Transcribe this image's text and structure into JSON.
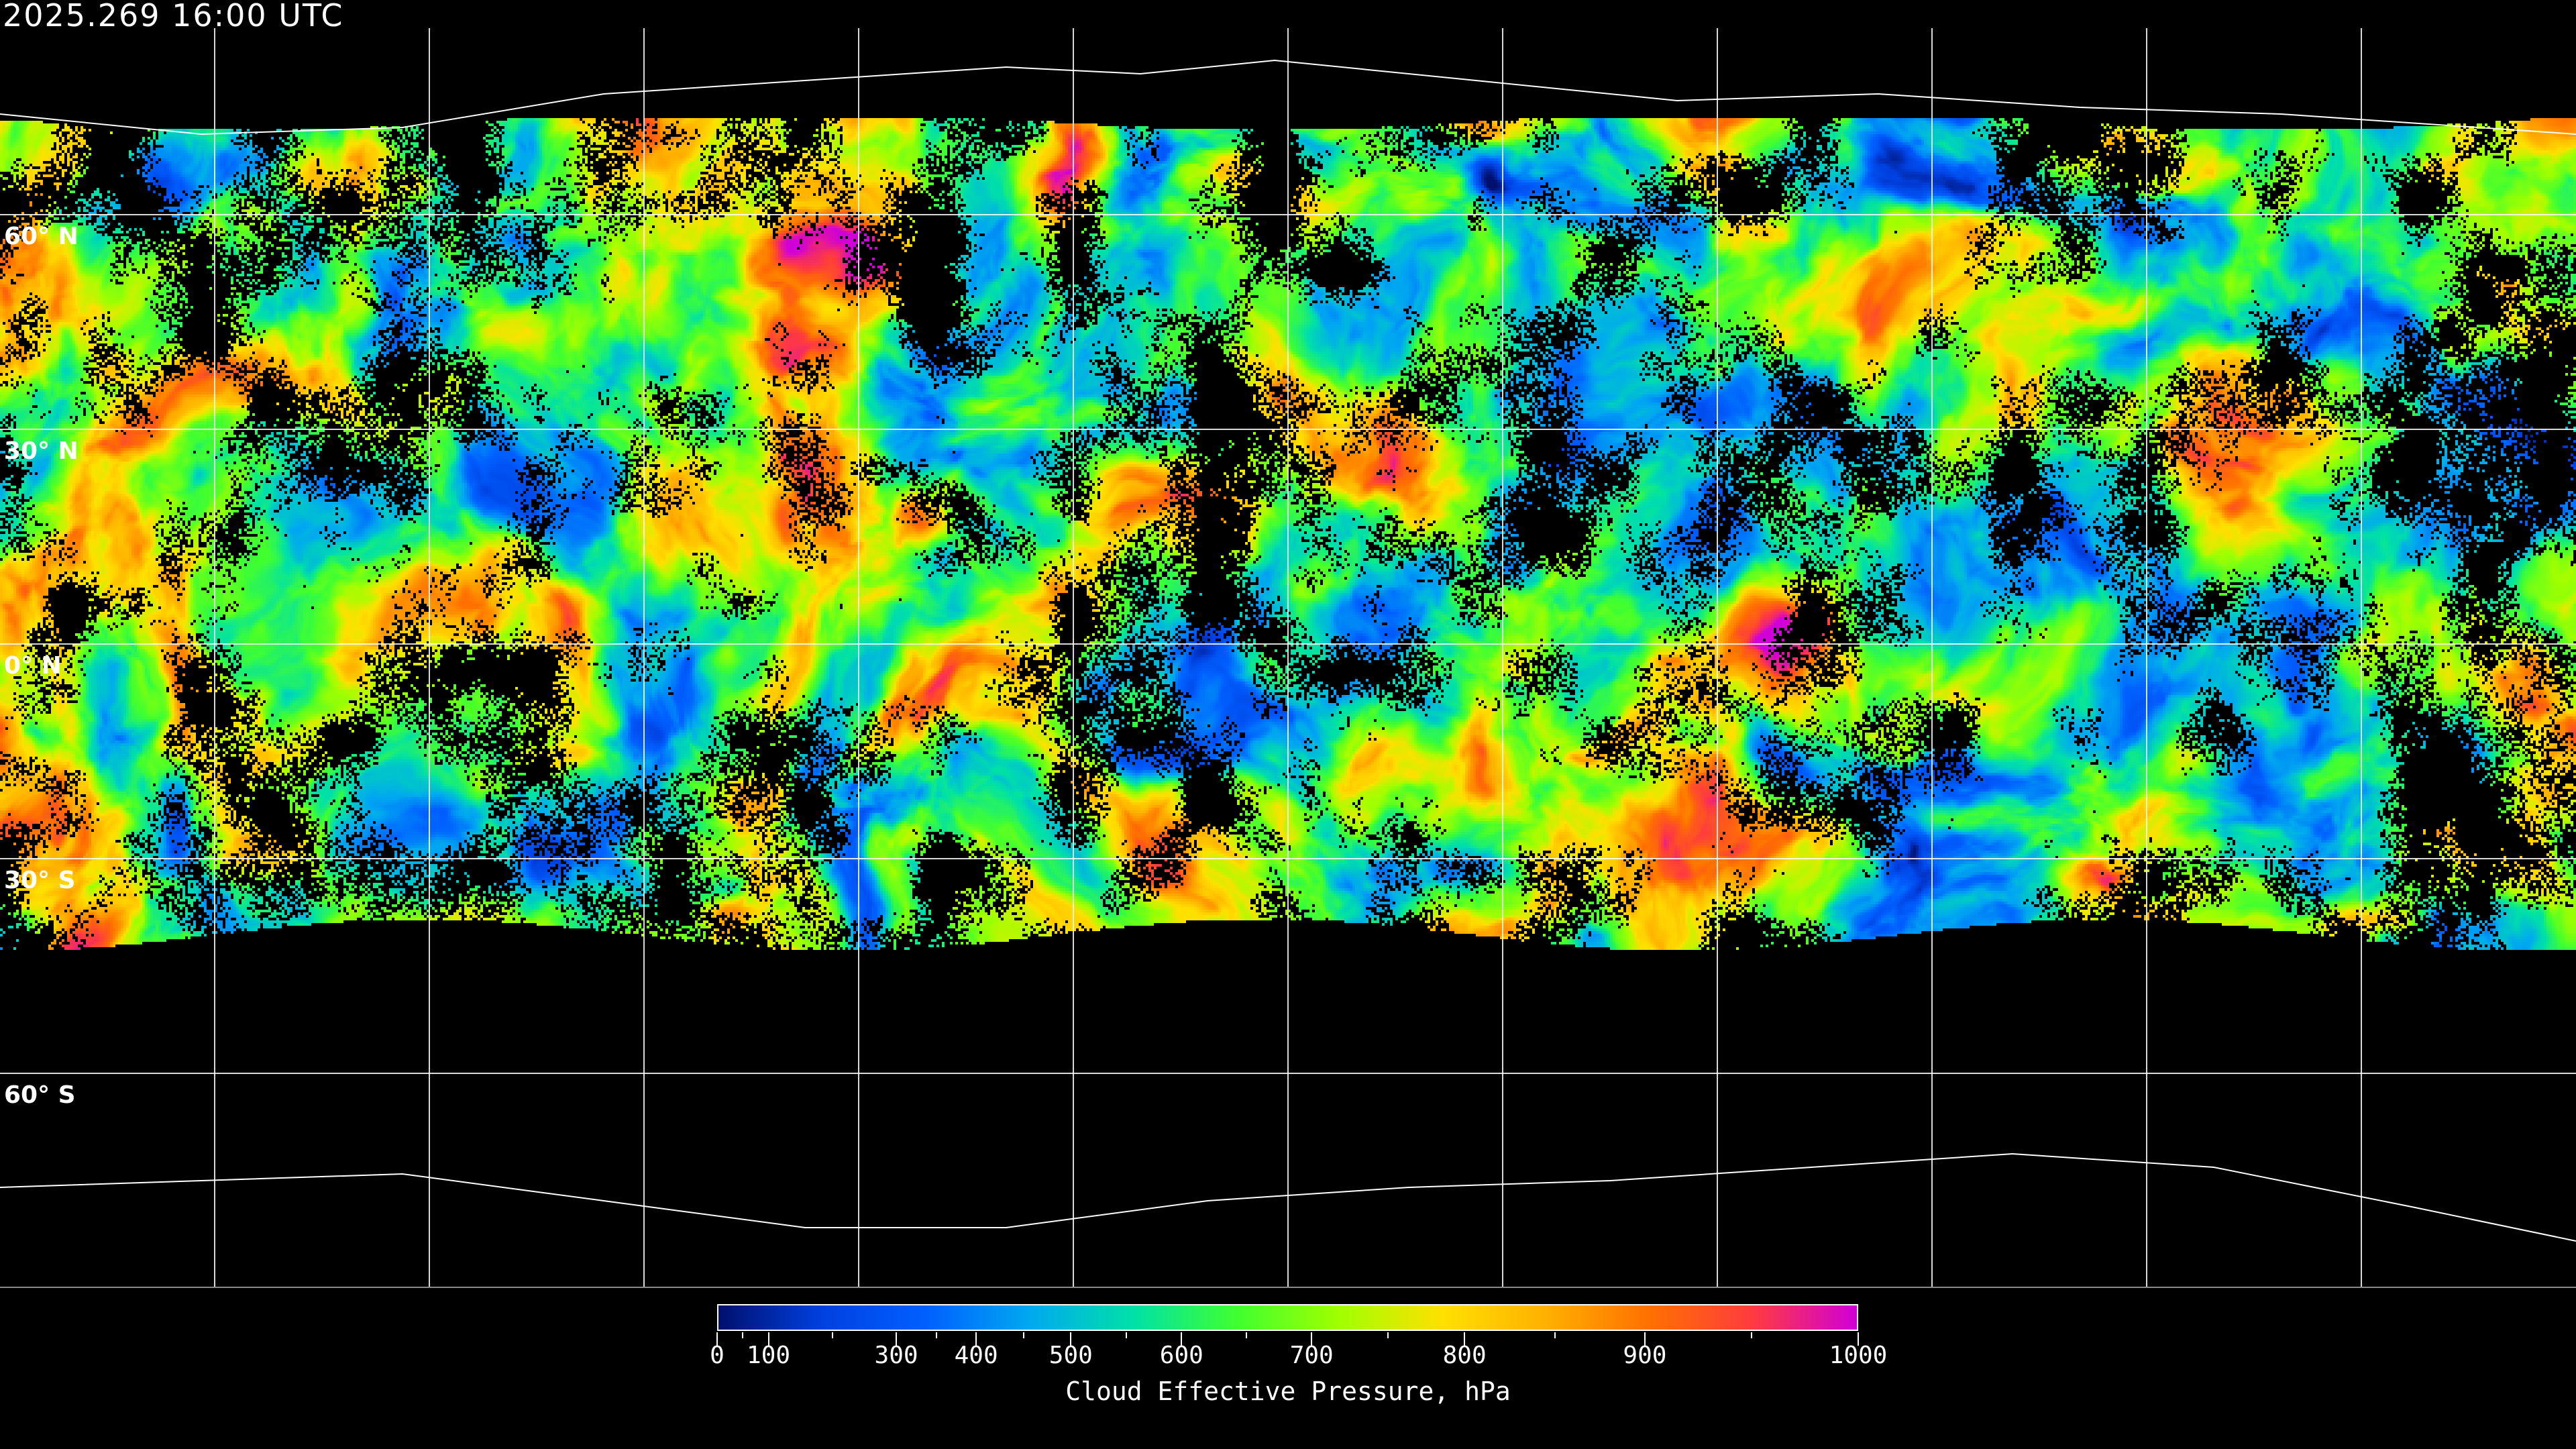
{
  "header": {
    "timestamp": "2025.269 16:00 UTC"
  },
  "map": {
    "projection": "equirectangular",
    "no_cloud_color": "#000000",
    "gridline_color": "#ffffff",
    "coastline_color": "#ffffff",
    "lat_labels": [
      "60° N",
      "30° N",
      "0° N",
      "30° S",
      "60° S"
    ],
    "lat_values": [
      60,
      30,
      0,
      -30,
      -60
    ],
    "lon_grid_spacing_deg": 30
  },
  "colorbar": {
    "title": "Cloud Effective Pressure, hPa",
    "min": 0,
    "max": 1000,
    "tick_labels": [
      "0",
      "100",
      "300",
      "400",
      "500",
      "600",
      "700",
      "800",
      "900",
      "1000"
    ],
    "tick_values": [
      0,
      100,
      300,
      400,
      500,
      600,
      700,
      800,
      900,
      1000
    ],
    "tick_fractions": [
      0,
      0.045,
      0.157,
      0.227,
      0.31,
      0.407,
      0.521,
      0.655,
      0.813,
      1.0
    ],
    "minor_tick_values": [
      50,
      200,
      350,
      450,
      550,
      650,
      750,
      850,
      950
    ],
    "colors": [
      "#00106e",
      "#0040e0",
      "#0060ff",
      "#00a8f0",
      "#00e0a8",
      "#40ff30",
      "#a0ff00",
      "#ffe000",
      "#ffb000",
      "#ff7000",
      "#ff3a40",
      "#d000d8"
    ]
  }
}
